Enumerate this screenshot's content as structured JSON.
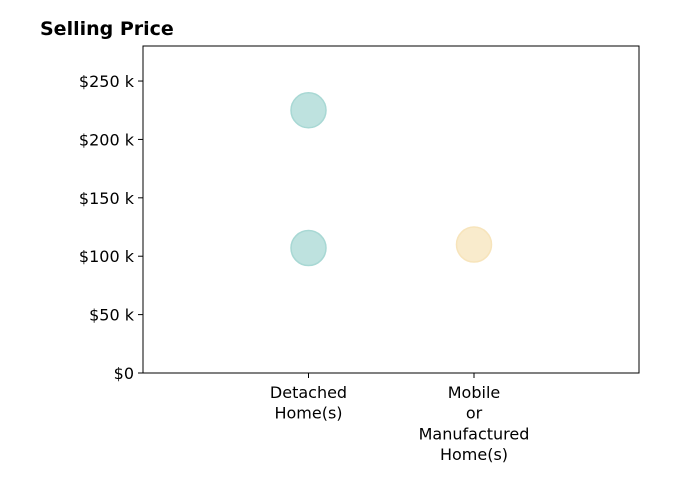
{
  "chart_data": {
    "type": "scatter",
    "title": "Selling Price",
    "xlabel": "",
    "ylabel": "",
    "categories": [
      [
        "Detached",
        "Home(s)"
      ],
      [
        "Mobile",
        "or",
        "Manufactured",
        "Home(s)"
      ]
    ],
    "ylim": [
      0,
      280000
    ],
    "yticks": [
      0,
      50000,
      100000,
      150000,
      200000,
      250000
    ],
    "ytick_labels": [
      "$0",
      "$50 k",
      "$100 k",
      "$150 k",
      "$200 k",
      "$250 k"
    ],
    "grid": false,
    "points": [
      {
        "category": 0,
        "y": 225000,
        "color": "#a8d8d4"
      },
      {
        "category": 0,
        "y": 107000,
        "color": "#a8d8d4"
      },
      {
        "category": 1,
        "y": 110000,
        "color": "#f7e4bb"
      }
    ]
  }
}
